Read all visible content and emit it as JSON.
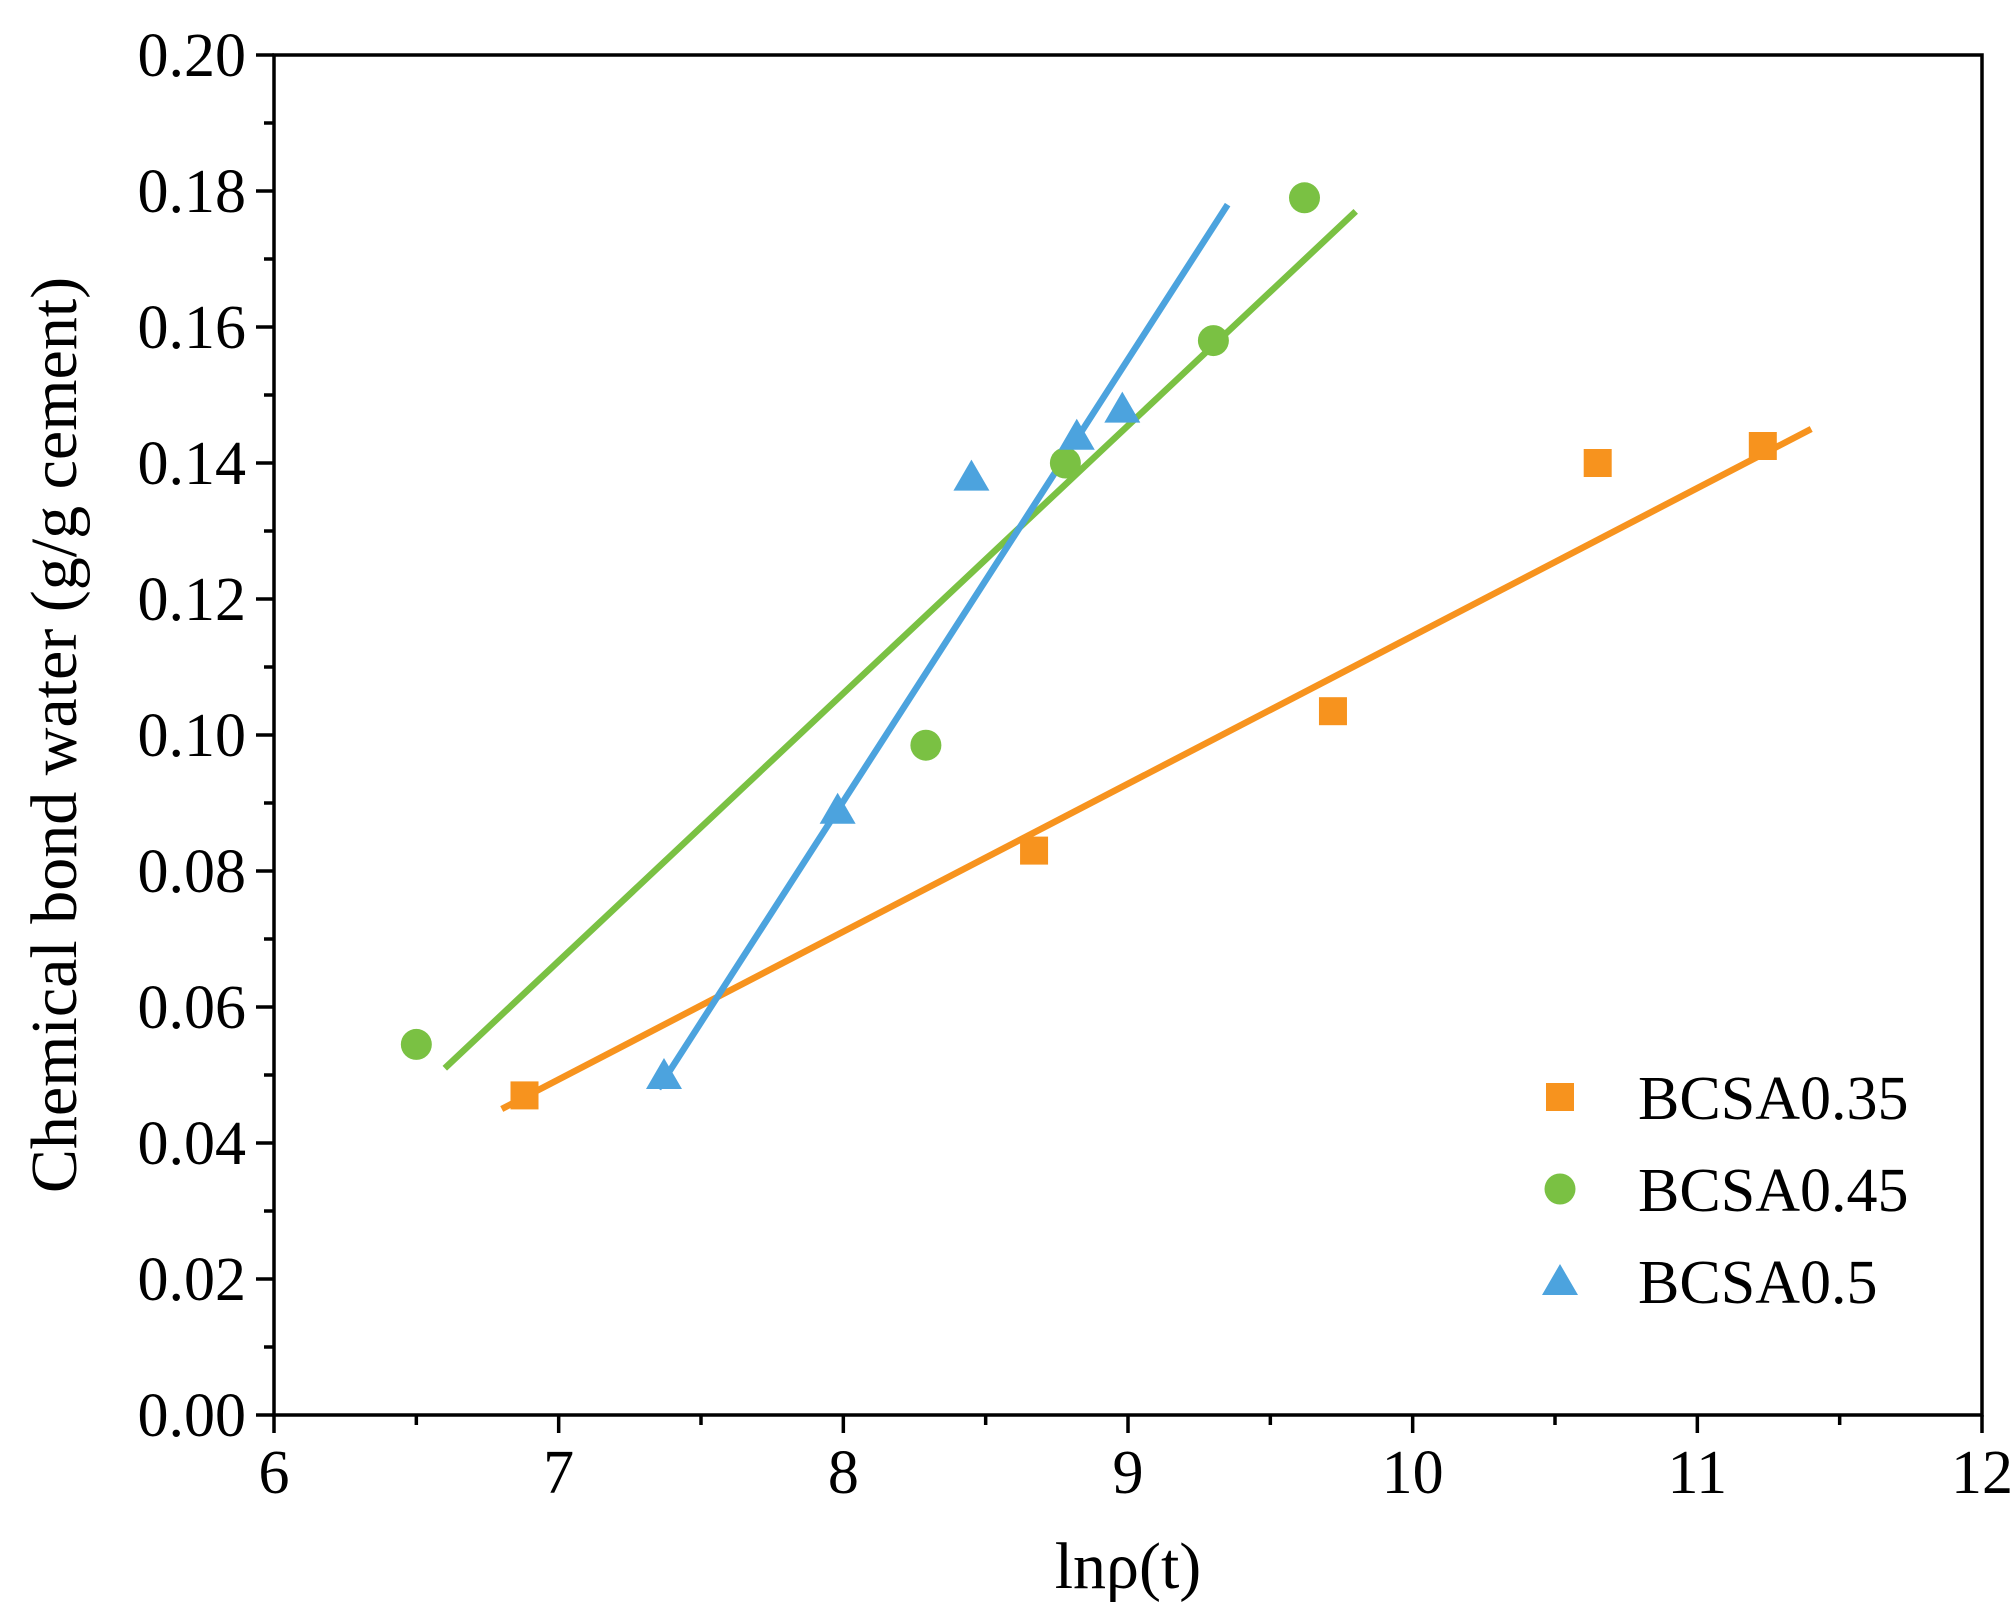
{
  "chart_data": {
    "type": "scatter",
    "title": "",
    "xlabel": "lnρ(t)",
    "ylabel": "Chemical bond water (g/g cement)",
    "xlim": [
      6,
      12
    ],
    "ylim": [
      0.0,
      0.2
    ],
    "x_ticks": [
      "6",
      "7",
      "8",
      "9",
      "10",
      "11",
      "12"
    ],
    "y_ticks": [
      "0.00",
      "0.02",
      "0.04",
      "0.06",
      "0.08",
      "0.10",
      "0.12",
      "0.14",
      "0.16",
      "0.18",
      "0.20"
    ],
    "grid": false,
    "legend_position": "bottom-right",
    "series": [
      {
        "name": "BCSA0.35",
        "marker": "square",
        "color": "#f7931e",
        "points": [
          [
            6.88,
            0.047
          ],
          [
            8.67,
            0.083
          ],
          [
            9.72,
            0.1035
          ],
          [
            10.65,
            0.14
          ],
          [
            11.23,
            0.1425
          ]
        ],
        "fit": [
          [
            6.8,
            0.045
          ],
          [
            11.4,
            0.145
          ]
        ]
      },
      {
        "name": "BCSA0.45",
        "marker": "circle",
        "color": "#7ac143",
        "points": [
          [
            6.5,
            0.0545
          ],
          [
            8.29,
            0.0985
          ],
          [
            8.78,
            0.14
          ],
          [
            9.3,
            0.158
          ],
          [
            9.62,
            0.179
          ]
        ],
        "fit": [
          [
            6.6,
            0.051
          ],
          [
            9.8,
            0.177
          ]
        ]
      },
      {
        "name": "BCSA0.5",
        "marker": "triangle",
        "color": "#4ca3de",
        "points": [
          [
            7.37,
            0.05
          ],
          [
            7.98,
            0.089
          ],
          [
            8.45,
            0.138
          ],
          [
            8.82,
            0.144
          ],
          [
            8.98,
            0.148
          ]
        ],
        "fit": [
          [
            7.35,
            0.048
          ],
          [
            9.35,
            0.178
          ]
        ]
      }
    ]
  }
}
